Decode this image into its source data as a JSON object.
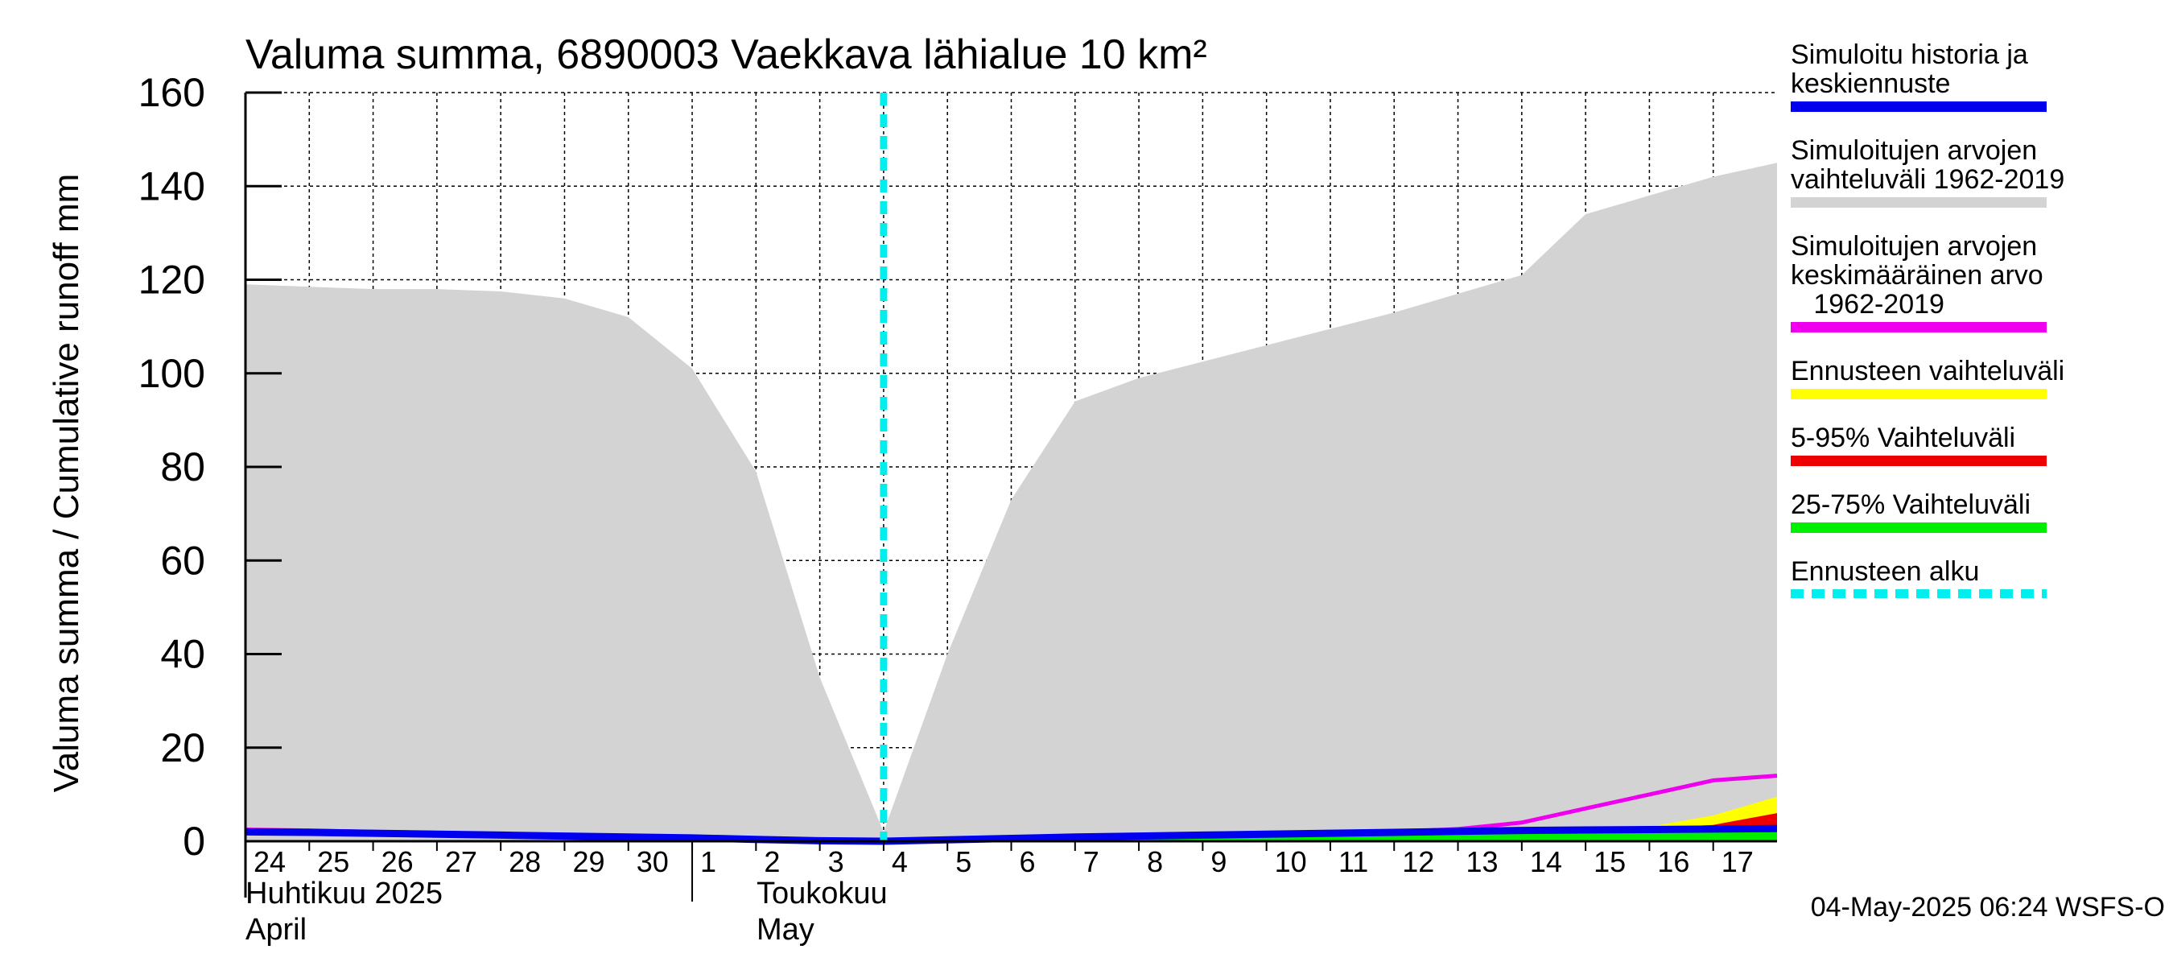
{
  "title": "Valuma summa, 6890003 Vaekkava lähialue 10 km²",
  "ylabel": "Valuma summa / Cumulative runoff    mm",
  "timestamp": "04-May-2025 06:24 WSFS-O",
  "month_labels": [
    {
      "fi": "Huhtikuu  2025",
      "en": "April"
    },
    {
      "fi": "Toukokuu",
      "en": "May"
    }
  ],
  "legend": [
    {
      "label": "Simuloitu historia ja\nkeskiennuste",
      "color": "#0000ee",
      "style": "solid"
    },
    {
      "label": "Simuloitujen arvojen\nvaihteluväli 1962-2019",
      "color": "#d3d3d3",
      "style": "solid"
    },
    {
      "label": "Simuloitujen arvojen\nkeskimääräinen arvo\n   1962-2019",
      "color": "#ee00ee",
      "style": "solid"
    },
    {
      "label": "Ennusteen vaihteluväli",
      "color": "#ffff00",
      "style": "solid"
    },
    {
      "label": "5-95% Vaihteluväli",
      "color": "#ee0000",
      "style": "solid"
    },
    {
      "label": "25-75% Vaihteluväli",
      "color": "#00ee00",
      "style": "solid"
    },
    {
      "label": "Ennusteen alku",
      "color": "#00eeee",
      "style": "dashed"
    }
  ],
  "chart_data": {
    "type": "area",
    "title": "Valuma summa, 6890003 Vaekkava lähialue 10 km²",
    "ylabel": "Valuma summa / Cumulative runoff    mm",
    "ylim": [
      0,
      160
    ],
    "yticks": [
      0,
      20,
      40,
      60,
      80,
      100,
      120,
      140,
      160
    ],
    "xticks": [
      "24",
      "25",
      "26",
      "27",
      "28",
      "29",
      "30",
      "1",
      "2",
      "3",
      "4",
      "5",
      "6",
      "7",
      "8",
      "9",
      "10",
      "11",
      "12",
      "13",
      "14",
      "15",
      "16",
      "17"
    ],
    "x_dates": [
      "2025-04-24",
      "2025-04-25",
      "2025-04-26",
      "2025-04-27",
      "2025-04-28",
      "2025-04-29",
      "2025-04-30",
      "2025-05-01",
      "2025-05-02",
      "2025-05-03",
      "2025-05-04",
      "2025-05-05",
      "2025-05-06",
      "2025-05-07",
      "2025-05-08",
      "2025-05-09",
      "2025-05-10",
      "2025-05-11",
      "2025-05-12",
      "2025-05-13",
      "2025-05-14",
      "2025-05-15",
      "2025-05-16",
      "2025-05-17",
      "2025-05-18"
    ],
    "grid": true,
    "forecast_start": "2025-05-04",
    "series": [
      {
        "name": "Simuloitujen arvojen vaihteluväli 1962-2019",
        "upper": [
          119,
          118.5,
          118,
          118,
          117.5,
          116,
          112,
          101,
          79,
          35,
          2,
          40,
          73,
          94,
          99,
          102.5,
          106,
          109.5,
          113,
          117,
          121,
          134,
          138,
          142,
          145
        ],
        "lower": [
          0,
          0,
          0,
          0,
          0,
          0,
          0,
          0,
          0,
          0,
          0,
          0,
          0,
          0,
          0,
          0,
          0,
          0,
          0,
          0,
          0,
          0,
          0,
          0,
          0
        ]
      },
      {
        "name": "Simuloitujen arvojen keskimääräinen arvo 1962-2019",
        "values": [
          2.5,
          2.3,
          2,
          1.8,
          1.6,
          1.2,
          1,
          0.8,
          0.4,
          0,
          0,
          0.2,
          0.4,
          0.6,
          0.8,
          1,
          1.3,
          1.6,
          2,
          2.6,
          4,
          7,
          10,
          13,
          14
        ]
      },
      {
        "name": "Ennusteen vaihteluväli",
        "upper": [
          null,
          null,
          null,
          null,
          null,
          null,
          null,
          null,
          null,
          null,
          0,
          0.3,
          0.5,
          0.7,
          0.9,
          1.1,
          1.4,
          1.6,
          1.9,
          2.1,
          2.4,
          2.7,
          3.1,
          5.5,
          9.5
        ],
        "lower": [
          null,
          null,
          null,
          null,
          null,
          null,
          null,
          null,
          null,
          null,
          0,
          0,
          0,
          0,
          0,
          0,
          0,
          0,
          0,
          0,
          0,
          0,
          0,
          0,
          0
        ]
      },
      {
        "name": "5-95% Vaihteluväli",
        "upper": [
          null,
          null,
          null,
          null,
          null,
          null,
          null,
          null,
          null,
          null,
          0,
          0.3,
          0.5,
          0.7,
          0.9,
          1.1,
          1.4,
          1.6,
          1.9,
          2.1,
          2.4,
          2.6,
          2.8,
          3.5,
          6
        ],
        "lower": [
          null,
          null,
          null,
          null,
          null,
          null,
          null,
          null,
          null,
          null,
          0,
          0,
          0,
          0,
          0,
          0,
          0,
          0,
          0,
          0,
          0,
          0,
          0,
          0,
          0
        ]
      },
      {
        "name": "25-75% Vaihteluväli",
        "upper": [
          null,
          null,
          null,
          null,
          null,
          null,
          null,
          null,
          null,
          null,
          0,
          0.3,
          0.5,
          0.7,
          0.9,
          1.1,
          1.3,
          1.5,
          1.7,
          1.9,
          2.1,
          2.3,
          2.5,
          2.7,
          3
        ],
        "lower": [
          null,
          null,
          null,
          null,
          null,
          null,
          null,
          null,
          null,
          null,
          0,
          0,
          0,
          0,
          0,
          0,
          0,
          0,
          0,
          0,
          0,
          0,
          0,
          0,
          0
        ]
      },
      {
        "name": "Simuloitu historia ja keskiennuste",
        "values": [
          2,
          1.9,
          1.7,
          1.5,
          1.3,
          1.1,
          0.9,
          0.7,
          0.4,
          0.1,
          0,
          0.3,
          0.6,
          0.9,
          1.1,
          1.3,
          1.5,
          1.7,
          1.9,
          2.1,
          2.3,
          2.4,
          2.5,
          2.6,
          2.7
        ]
      }
    ]
  }
}
